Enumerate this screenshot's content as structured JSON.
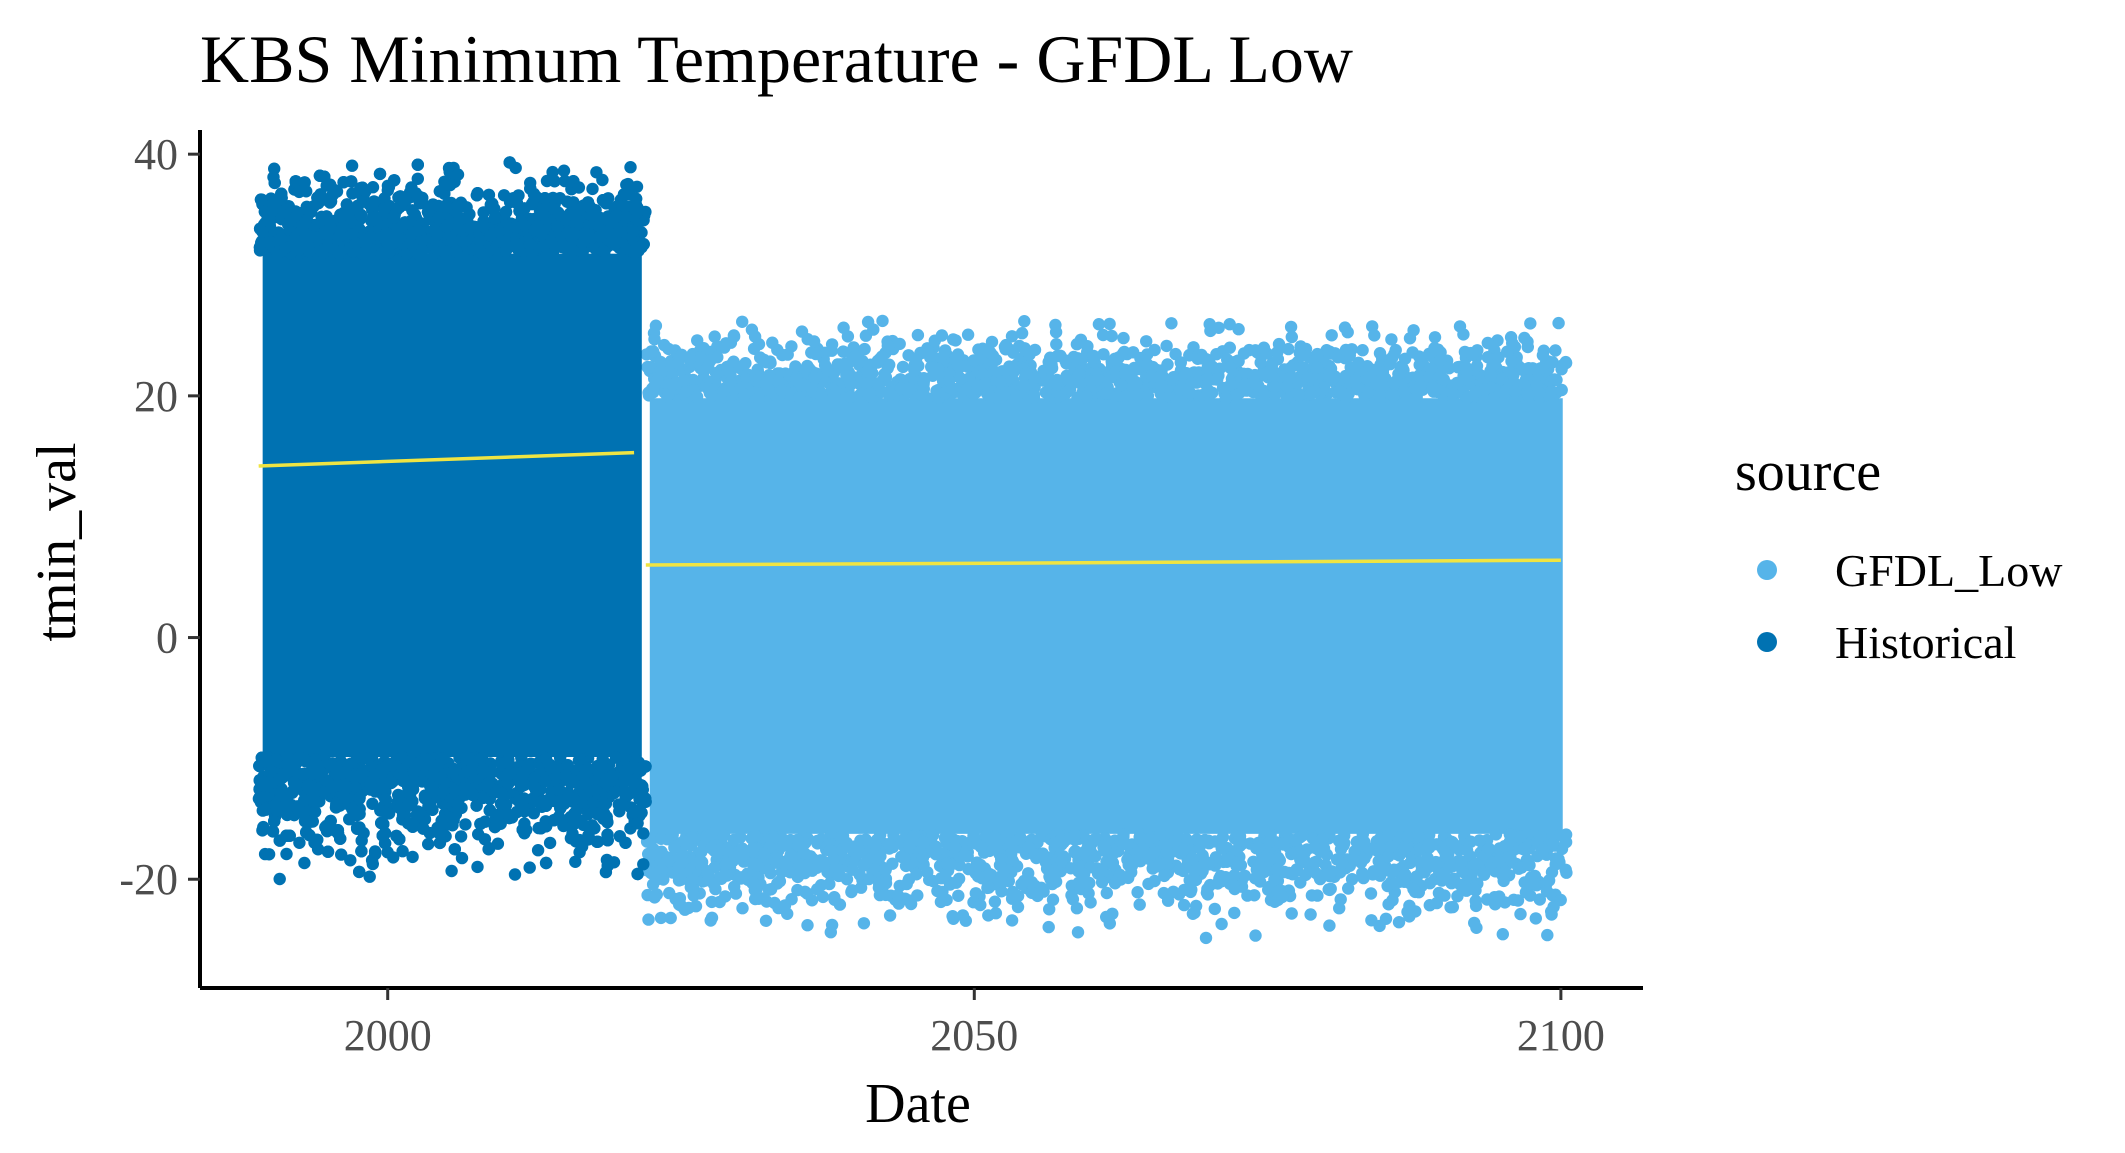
{
  "chart_data": {
    "type": "scatter",
    "title": "KBS Minimum Temperature - GFDL Low",
    "xlabel": "Date",
    "ylabel": "tmin_val",
    "xlim": [
      1984,
      2107
    ],
    "ylim": [
      -29,
      42
    ],
    "x_ticks": [
      2000,
      2050,
      2100
    ],
    "y_ticks": [
      -20,
      0,
      20,
      40
    ],
    "grid": false,
    "legend_position": "right",
    "legend_title": "source",
    "series": [
      {
        "name": "GFDL_Low",
        "color": "#56B4E9",
        "x_range": [
          2022,
          2100.5
        ],
        "y_range": [
          -25,
          26.5
        ],
        "trend": {
          "x": [
            2022,
            2100
          ],
          "y": [
            6.0,
            6.4
          ]
        }
      },
      {
        "name": "Historical",
        "color": "#0072B2",
        "x_range": [
          1989,
          2022
        ],
        "y_range": [
          -20,
          39.5
        ],
        "trend": {
          "x": [
            1989,
            2021
          ],
          "y": [
            14.2,
            15.3
          ]
        }
      }
    ],
    "trend_color": "#F0E442"
  }
}
